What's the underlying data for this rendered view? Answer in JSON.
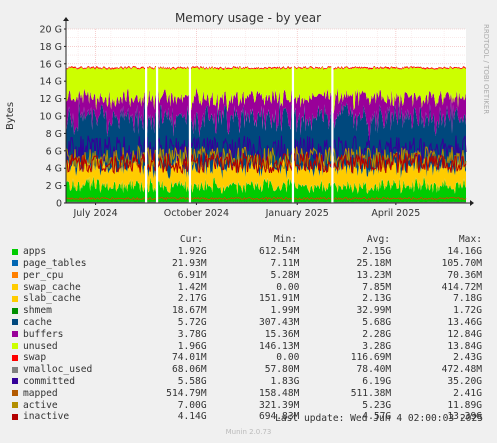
{
  "chart_data": {
    "type": "area",
    "title": "Memory usage - by year",
    "ylabel": "Bytes",
    "side_label": "RRDTOOL / TOBI OETIKER",
    "yticks": [
      "0",
      "2 G",
      "4 G",
      "6 G",
      "8 G",
      "10 G",
      "12 G",
      "14 G",
      "16 G",
      "18 G",
      "20 G"
    ],
    "ylim_gb": [
      0,
      20
    ],
    "xticks": [
      {
        "label": "July 2024",
        "date": "2024-07-01"
      },
      {
        "label": "October 2024",
        "date": "2024-10-01"
      },
      {
        "label": "January 2025",
        "date": "2025-01-01"
      },
      {
        "label": "April 2025",
        "date": "2025-04-01"
      }
    ],
    "xlim": [
      "2024-06-04",
      "2025-06-04"
    ],
    "grid": true,
    "legend_placement": "bottom",
    "stacked_series_order": [
      "apps",
      "page_tables",
      "per_cpu",
      "swap_cache",
      "slab_cache",
      "shmem",
      "cache",
      "buffers",
      "unused",
      "swap"
    ],
    "approx_stack_gb": {
      "apps": 1.9,
      "page_tables": 0.02,
      "per_cpu": 0.01,
      "swap_cache": 0.01,
      "slab_cache": 2.2,
      "shmem": 0.03,
      "cache": 5.7,
      "buffers": 2.3,
      "unused": 3.3,
      "swap": 0.12
    },
    "line_series": [
      "vmalloc_used",
      "committed",
      "mapped",
      "active",
      "inactive"
    ],
    "approx_line_gb": {
      "vmalloc_used": 0.07,
      "committed": 6.2,
      "mapped": 0.51,
      "active": 5.2,
      "inactive": 4.6
    },
    "gaps": [
      "2024-08-16",
      "2024-08-26",
      "2024-09-25",
      "2024-12-28",
      "2025-02-02"
    ],
    "legend_header": {
      "cur": "Cur:",
      "min": "Min:",
      "avg": "Avg:",
      "max": "Max:"
    },
    "series": [
      {
        "name": "apps",
        "color": "#00cc00",
        "cur": "1.92G",
        "min": "612.54M",
        "avg": "2.15G",
        "max": "14.16G"
      },
      {
        "name": "page_tables",
        "color": "#0066b3",
        "cur": "21.93M",
        "min": "7.11M",
        "avg": "25.18M",
        "max": "105.70M"
      },
      {
        "name": "per_cpu",
        "color": "#ff8000",
        "cur": "6.91M",
        "min": "5.28M",
        "avg": "13.23M",
        "max": "70.36M"
      },
      {
        "name": "swap_cache",
        "color": "#ffcc00",
        "cur": "1.42M",
        "min": "0.00",
        "avg": "7.85M",
        "max": "414.72M"
      },
      {
        "name": "slab_cache",
        "color": "#ffcc00",
        "cur": "2.17G",
        "min": "151.91M",
        "avg": "2.13G",
        "max": "7.18G"
      },
      {
        "name": "shmem",
        "color": "#008f00",
        "cur": "18.67M",
        "min": "1.99M",
        "avg": "32.99M",
        "max": "1.72G"
      },
      {
        "name": "cache",
        "color": "#00487d",
        "cur": "5.72G",
        "min": "307.43M",
        "avg": "5.68G",
        "max": "13.46G"
      },
      {
        "name": "buffers",
        "color": "#990099",
        "cur": "3.78G",
        "min": "15.36M",
        "avg": "2.28G",
        "max": "12.84G"
      },
      {
        "name": "unused",
        "color": "#ccff00",
        "cur": "1.96G",
        "min": "146.13M",
        "avg": "3.28G",
        "max": "13.84G"
      },
      {
        "name": "swap",
        "color": "#ff0000",
        "cur": "74.01M",
        "min": "0.00",
        "avg": "116.69M",
        "max": "2.43G"
      },
      {
        "name": "vmalloc_used",
        "color": "#808080",
        "cur": "68.06M",
        "min": "57.80M",
        "avg": "78.40M",
        "max": "472.48M"
      },
      {
        "name": "committed",
        "color": "#330099",
        "cur": "5.58G",
        "min": "1.83G",
        "avg": "6.19G",
        "max": "35.20G"
      },
      {
        "name": "mapped",
        "color": "#b35a00",
        "cur": "514.79M",
        "min": "158.48M",
        "avg": "511.38M",
        "max": "2.41G"
      },
      {
        "name": "active",
        "color": "#b38f00",
        "cur": "7.00G",
        "min": "321.39M",
        "avg": "5.23G",
        "max": "11.89G"
      },
      {
        "name": "inactive",
        "color": "#b30000",
        "cur": "4.14G",
        "min": "694.83M",
        "avg": "4.57G",
        "max": "13.39G"
      }
    ]
  },
  "footer": {
    "last_update": "Last update: Wed Jun  4 02:00:03 2025",
    "munin": "Munin 2.0.73"
  }
}
